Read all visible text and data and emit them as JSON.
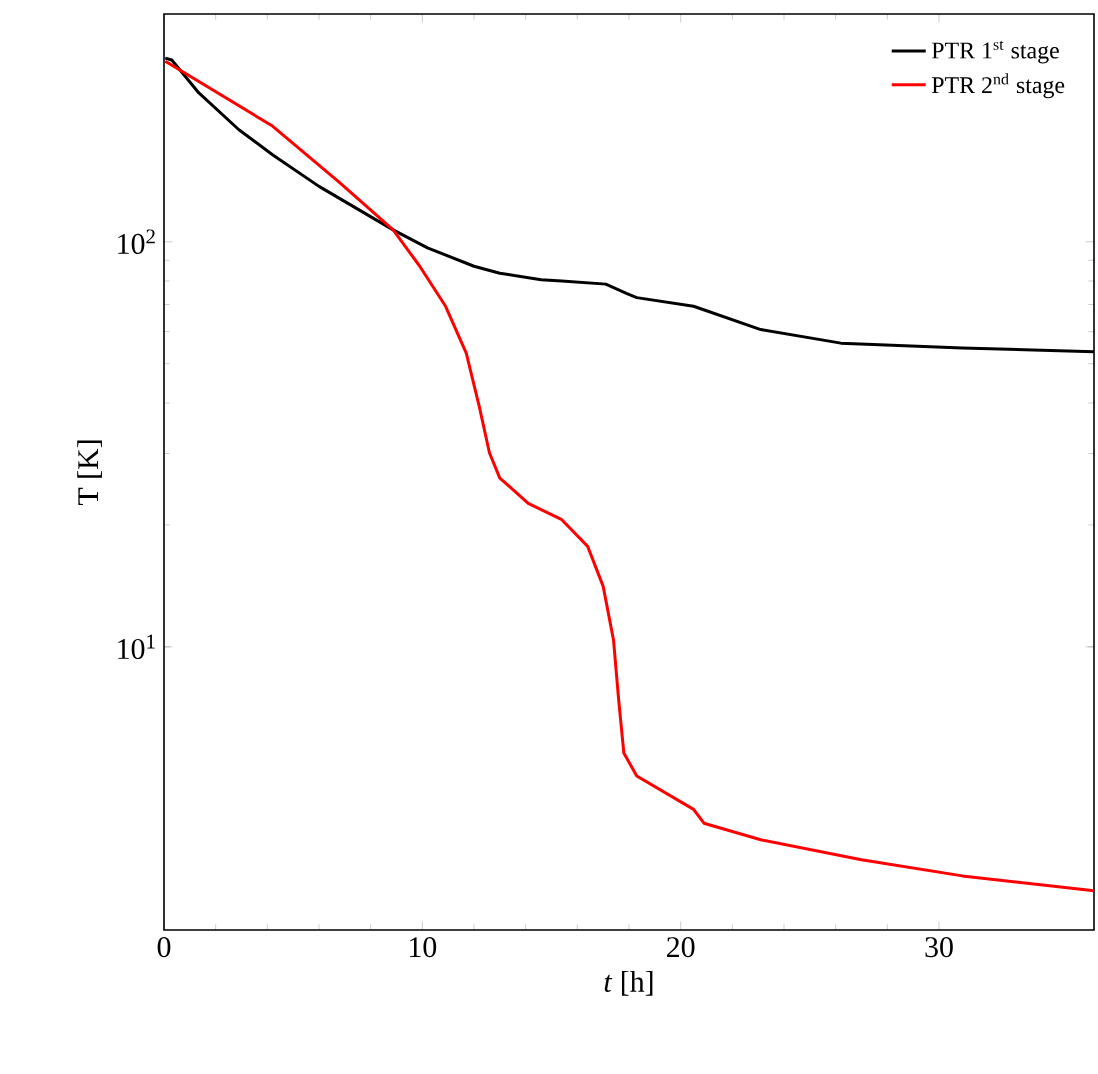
{
  "chart_data": {
    "type": "line",
    "xlabel": "*t* [h]",
    "ylabel": "T [K]",
    "log": "y",
    "xlim": [
      0,
      36
    ],
    "ylim": [
      2,
      365
    ],
    "xticks": [
      0,
      10,
      20,
      30
    ],
    "yticks": [
      {
        "value": 10,
        "label": "10$^{1}$"
      },
      {
        "value": 100,
        "label": "10$^{2}$"
      }
    ],
    "legend": "top right",
    "series": [
      {
        "name": "PTR 1$^{st}$ stage",
        "color": "#000000",
        "x": [
          0.05,
          0.3,
          1.35,
          2.9,
          4.2,
          6.0,
          8.87,
          10.2,
          12.0,
          13.0,
          14.6,
          15.4,
          17.1,
          17.9,
          18.3,
          20.5,
          23.1,
          26.2,
          30.9,
          36
        ],
        "values": [
          284,
          281,
          233,
          189,
          164,
          137,
          107,
          96.6,
          87,
          83.6,
          80.6,
          80.0,
          78.6,
          74.6,
          72.8,
          69.3,
          60.7,
          56.2,
          54.7,
          53.5
        ]
      },
      {
        "name": "PTR 2$^{nd}$ stage",
        "color": "#ff0000",
        "x": [
          0.05,
          4.2,
          6.8,
          8.87,
          9.9,
          10.9,
          11.7,
          12.2,
          12.6,
          13.0,
          14.1,
          15.4,
          16.4,
          17.0,
          17.4,
          17.6,
          17.8,
          18.3,
          20.5,
          20.9,
          23.1,
          27.0,
          30.9,
          36
        ],
        "values": [
          279,
          193,
          140,
          107,
          87,
          69.3,
          53.1,
          39.3,
          30.1,
          26.1,
          22.6,
          20.6,
          17.7,
          14.1,
          10.4,
          7.4,
          5.47,
          4.8,
          3.97,
          3.67,
          3.34,
          2.98,
          2.72,
          2.5
        ]
      }
    ]
  }
}
